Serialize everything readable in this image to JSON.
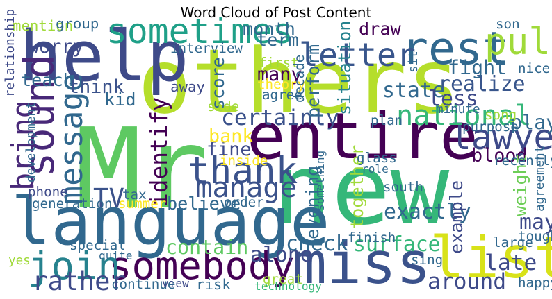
{
  "chart_data": {
    "type": "word-cloud",
    "title": "Word Cloud of Post Content",
    "words": [
      {
        "text": "Mr",
        "weight": 100,
        "color": "#5ec962"
      },
      {
        "text": "new",
        "weight": 88,
        "color": "#35b779"
      },
      {
        "text": "others",
        "weight": 80,
        "color": "#b5de2b"
      },
      {
        "text": "language",
        "weight": 58,
        "color": "#31688e"
      },
      {
        "text": "help",
        "weight": 62,
        "color": "#3e4a89"
      },
      {
        "text": "entire",
        "weight": 56,
        "color": "#440154"
      },
      {
        "text": "miss",
        "weight": 50,
        "color": "#3b528b"
      },
      {
        "text": "list",
        "weight": 50,
        "color": "#d8e219"
      },
      {
        "text": "rest",
        "weight": 38,
        "color": "#31688e"
      },
      {
        "text": "sound",
        "weight": 34,
        "color": "#482878"
      },
      {
        "text": "somebody",
        "weight": 32,
        "color": "#440154"
      },
      {
        "text": "join",
        "weight": 32,
        "color": "#26828e"
      },
      {
        "text": "pull",
        "weight": 30,
        "color": "#a0da39"
      },
      {
        "text": "sometimes",
        "weight": 28,
        "color": "#1fa088"
      },
      {
        "text": "letter",
        "weight": 26,
        "color": "#39568c"
      },
      {
        "text": "thank",
        "weight": 30,
        "color": "#3b528b"
      },
      {
        "text": "lawyer",
        "weight": 28,
        "color": "#3e4a89"
      },
      {
        "text": "message",
        "weight": 25,
        "color": "#31688e"
      },
      {
        "text": "bring",
        "weight": 24,
        "color": "#482878"
      },
      {
        "text": "manage",
        "weight": 22,
        "color": "#3b528b"
      },
      {
        "text": "national",
        "weight": 22,
        "color": "#35b779"
      },
      {
        "text": "TV",
        "weight": 20,
        "color": "#3b528b"
      },
      {
        "text": "rather",
        "weight": 20,
        "color": "#3e4a89"
      },
      {
        "text": "identify",
        "weight": 17,
        "color": "#440154"
      },
      {
        "text": "certainly",
        "weight": 16,
        "color": "#3b528b"
      },
      {
        "text": "contain",
        "weight": 14,
        "color": "#5ec962"
      },
      {
        "text": "alone",
        "weight": 15,
        "color": "#3e4a89"
      },
      {
        "text": "check",
        "weight": 15,
        "color": "#31688e"
      },
      {
        "text": "surface",
        "weight": 15,
        "color": "#35b779"
      },
      {
        "text": "exactly",
        "weight": 15,
        "color": "#31688e"
      },
      {
        "text": "around",
        "weight": 16,
        "color": "#3e4a89"
      },
      {
        "text": "late",
        "weight": 16,
        "color": "#3e4a89"
      },
      {
        "text": "may",
        "weight": 15,
        "color": "#3e4a89"
      },
      {
        "text": "weight",
        "weight": 12,
        "color": "#6ece58"
      },
      {
        "text": "fight",
        "weight": 14,
        "color": "#31688e"
      },
      {
        "text": "realize",
        "weight": 15,
        "color": "#39568c"
      },
      {
        "text": "state",
        "weight": 15,
        "color": "#31688e"
      },
      {
        "text": "less",
        "weight": 15,
        "color": "#3e4a89"
      },
      {
        "text": "play",
        "weight": 14,
        "color": "#31688e"
      },
      {
        "text": "blood",
        "weight": 13,
        "color": "#440154"
      },
      {
        "text": "worry",
        "weight": 13,
        "color": "#3e4a89"
      },
      {
        "text": "month",
        "weight": 12,
        "color": "#31688e"
      },
      {
        "text": "term",
        "weight": 12,
        "color": "#31688e"
      },
      {
        "text": "draw",
        "weight": 12,
        "color": "#440154"
      },
      {
        "text": "teach",
        "weight": 12,
        "color": "#31688e"
      },
      {
        "text": "think",
        "weight": 13,
        "color": "#3b528b"
      },
      {
        "text": "kid",
        "weight": 12,
        "color": "#31688e"
      },
      {
        "text": "score",
        "weight": 12,
        "color": "#31688e"
      },
      {
        "text": "many",
        "weight": 13,
        "color": "#440154"
      },
      {
        "text": "perform",
        "weight": 12,
        "color": "#31688e"
      },
      {
        "text": "situation",
        "weight": 12,
        "color": "#26828e"
      },
      {
        "text": "fine",
        "weight": 13,
        "color": "#3e4a89"
      },
      {
        "text": "bank",
        "weight": 13,
        "color": "#fde725"
      },
      {
        "text": "believe",
        "weight": 12,
        "color": "#31688e"
      },
      {
        "text": "evening",
        "weight": 12,
        "color": "#31688e"
      },
      {
        "text": "together",
        "weight": 12,
        "color": "#a0da39"
      },
      {
        "text": "example",
        "weight": 12,
        "color": "#3e4a89"
      },
      {
        "text": "mention",
        "weight": 9,
        "color": "#a0da39"
      },
      {
        "text": "group",
        "weight": 9,
        "color": "#31688e"
      },
      {
        "text": "relationship",
        "weight": 7,
        "color": "#3e4a89"
      },
      {
        "text": "interview",
        "weight": 8,
        "color": "#31688e"
      },
      {
        "text": "development",
        "weight": 7,
        "color": "#31688e"
      },
      {
        "text": "phone",
        "weight": 8,
        "color": "#3e4a89"
      },
      {
        "text": "generation",
        "weight": 8,
        "color": "#31688e"
      },
      {
        "text": "special",
        "weight": 8,
        "color": "#31688e"
      },
      {
        "text": "yes",
        "weight": 7,
        "color": "#a0da39"
      },
      {
        "text": "continue",
        "weight": 8,
        "color": "#31688e"
      },
      {
        "text": "view",
        "weight": 6,
        "color": "#3e4a89"
      },
      {
        "text": "risk",
        "weight": 9,
        "color": "#31688e"
      },
      {
        "text": "great",
        "weight": 8,
        "color": "#a0da39"
      },
      {
        "text": "technology",
        "weight": 6,
        "color": "#35b779"
      },
      {
        "text": "first",
        "weight": 8,
        "color": "#a0da39"
      },
      {
        "text": "theory",
        "weight": 8,
        "color": "#fde725"
      },
      {
        "text": "agree",
        "weight": 8,
        "color": "#31688e"
      },
      {
        "text": "away",
        "weight": 9,
        "color": "#3e4a89"
      },
      {
        "text": "side",
        "weight": 8,
        "color": "#a0da39"
      },
      {
        "text": "decade",
        "weight": 8,
        "color": "#31688e"
      },
      {
        "text": "sit",
        "weight": 7,
        "color": "#31688e"
      },
      {
        "text": "son",
        "weight": 8,
        "color": "#31688e"
      },
      {
        "text": "nice",
        "weight": 8,
        "color": "#31688e"
      },
      {
        "text": "minute",
        "weight": 7,
        "color": "#31688e"
      },
      {
        "text": "song",
        "weight": 8,
        "color": "#a0da39"
      },
      {
        "text": "plan",
        "weight": 8,
        "color": "#31688e"
      },
      {
        "text": "purpose",
        "weight": 8,
        "color": "#31688e"
      },
      {
        "text": "glass",
        "weight": 8,
        "color": "#31688e"
      },
      {
        "text": "role",
        "weight": 6,
        "color": "#31688e"
      },
      {
        "text": "recently",
        "weight": 8,
        "color": "#31688e"
      },
      {
        "text": "inside",
        "weight": 8,
        "color": "#fde725"
      },
      {
        "text": "tax",
        "weight": 8,
        "color": "#31688e"
      },
      {
        "text": "summer",
        "weight": 8,
        "color": "#fde725"
      },
      {
        "text": "order",
        "weight": 8,
        "color": "#31688e"
      },
      {
        "text": "something",
        "weight": 6,
        "color": "#31688e"
      },
      {
        "text": "south",
        "weight": 8,
        "color": "#31688e"
      },
      {
        "text": "agreement",
        "weight": 7,
        "color": "#31688e"
      },
      {
        "text": "finish",
        "weight": 8,
        "color": "#31688e"
      },
      {
        "text": "quite",
        "weight": 6,
        "color": "#31688e"
      },
      {
        "text": "large",
        "weight": 8,
        "color": "#31688e"
      },
      {
        "text": "tough",
        "weight": 8,
        "color": "#31688e"
      },
      {
        "text": "sing",
        "weight": 8,
        "color": "#31688e"
      },
      {
        "text": "happy",
        "weight": 8,
        "color": "#31688e"
      }
    ]
  }
}
